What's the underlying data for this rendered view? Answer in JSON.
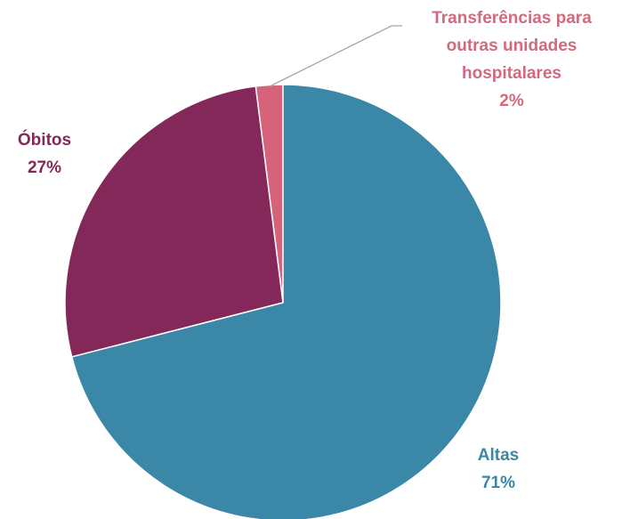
{
  "chart_data": {
    "type": "pie",
    "categories": [
      "Altas",
      "Óbitos",
      "Transferências para outras unidades hospitalares"
    ],
    "values": [
      71,
      27,
      2
    ],
    "value_labels": [
      "71%",
      "27%",
      "2%"
    ],
    "colors": [
      "#3b87a7",
      "#832858",
      "#d6637a"
    ]
  }
}
